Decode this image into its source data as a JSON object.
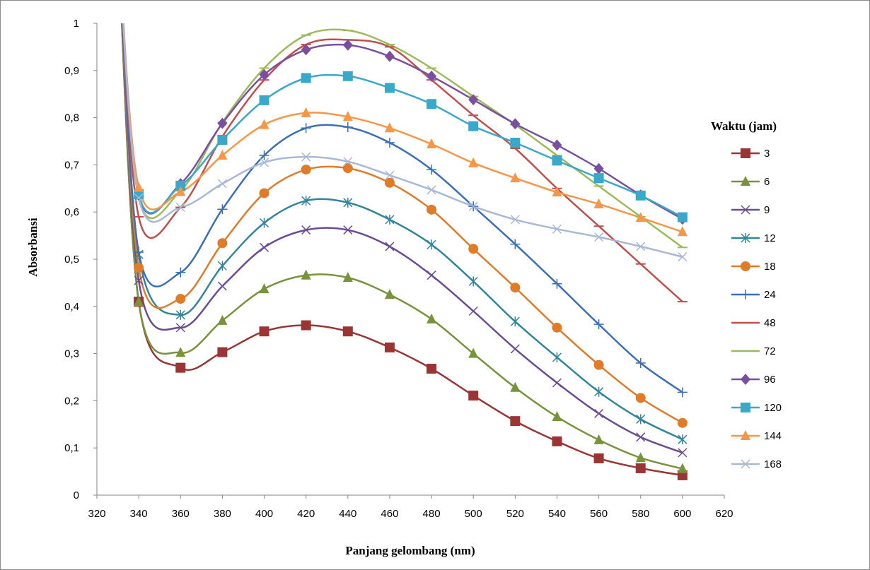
{
  "chart_data": {
    "type": "line",
    "title": "",
    "xlabel": "Panjang gelombang (nm)",
    "ylabel": "Absorbansi",
    "xlim": [
      320,
      620
    ],
    "ylim": [
      0,
      1
    ],
    "x_ticks": [
      320,
      340,
      360,
      380,
      400,
      420,
      440,
      460,
      480,
      500,
      520,
      540,
      560,
      580,
      600,
      620
    ],
    "y_ticks": [
      0,
      0.1,
      0.2,
      0.3,
      0.4,
      0.5,
      0.6,
      0.7,
      0.8,
      0.9,
      1
    ],
    "y_tick_labels": [
      "0",
      "0,1",
      "0,2",
      "0,3",
      "0,4",
      "0,5",
      "0,6",
      "0,7",
      "0,8",
      "0,9",
      "1"
    ],
    "grid": false,
    "smooth": true,
    "legend": {
      "title": "Waktu  (jam)",
      "position": "right"
    },
    "x": [
      330,
      340,
      360,
      380,
      400,
      420,
      440,
      460,
      480,
      500,
      520,
      540,
      560,
      580,
      600
    ],
    "series": [
      {
        "name": "3",
        "color": "#9b3535",
        "marker": "square",
        "values": [
          1.2,
          0.41,
          0.27,
          0.303,
          0.347,
          0.36,
          0.347,
          0.313,
          0.268,
          0.211,
          0.157,
          0.114,
          0.078,
          0.057,
          0.042
        ]
      },
      {
        "name": "6",
        "color": "#77933c",
        "marker": "triangle",
        "values": [
          1.2,
          0.41,
          0.302,
          0.37,
          0.437,
          0.466,
          0.461,
          0.425,
          0.373,
          0.3,
          0.228,
          0.166,
          0.117,
          0.079,
          0.056
        ]
      },
      {
        "name": "9",
        "color": "#6a4c93",
        "marker": "x",
        "values": [
          1.2,
          0.455,
          0.355,
          0.443,
          0.525,
          0.562,
          0.562,
          0.527,
          0.466,
          0.39,
          0.31,
          0.238,
          0.173,
          0.123,
          0.09
        ]
      },
      {
        "name": "12",
        "color": "#31859c",
        "marker": "star",
        "values": [
          1.2,
          0.51,
          0.382,
          0.486,
          0.577,
          0.624,
          0.62,
          0.584,
          0.531,
          0.453,
          0.368,
          0.292,
          0.219,
          0.161,
          0.118
        ]
      },
      {
        "name": "18",
        "color": "#e07b28",
        "marker": "circle",
        "values": [
          1.2,
          0.482,
          0.416,
          0.534,
          0.64,
          0.69,
          0.693,
          0.662,
          0.605,
          0.522,
          0.44,
          0.355,
          0.276,
          0.206,
          0.153
        ]
      },
      {
        "name": "24",
        "color": "#3b6fb6",
        "marker": "plus",
        "values": [
          1.2,
          0.515,
          0.472,
          0.606,
          0.72,
          0.778,
          0.78,
          0.747,
          0.69,
          0.612,
          0.532,
          0.448,
          0.362,
          0.28,
          0.218
        ]
      },
      {
        "name": "48",
        "color": "#c0504d",
        "marker": "dash",
        "values": [
          1.2,
          0.59,
          0.61,
          0.76,
          0.88,
          0.955,
          0.965,
          0.95,
          0.88,
          0.805,
          0.735,
          0.65,
          0.57,
          0.49,
          0.41
        ]
      },
      {
        "name": "72",
        "color": "#9bbb59",
        "marker": "dash",
        "values": [
          1.2,
          0.63,
          0.645,
          0.79,
          0.905,
          0.975,
          0.985,
          0.955,
          0.905,
          0.845,
          0.785,
          0.72,
          0.655,
          0.59,
          0.525
        ]
      },
      {
        "name": "96",
        "color": "#7b4fa0",
        "marker": "diamond",
        "values": [
          1.2,
          0.636,
          0.66,
          0.788,
          0.891,
          0.944,
          0.954,
          0.93,
          0.888,
          0.838,
          0.787,
          0.742,
          0.692,
          0.636,
          0.585
        ]
      },
      {
        "name": "120",
        "color": "#3aa8c8",
        "marker": "square",
        "values": [
          1.2,
          0.638,
          0.656,
          0.753,
          0.837,
          0.884,
          0.888,
          0.863,
          0.829,
          0.782,
          0.747,
          0.709,
          0.672,
          0.635,
          0.589
        ]
      },
      {
        "name": "144",
        "color": "#f79646",
        "marker": "triangle",
        "values": [
          1.2,
          0.652,
          0.643,
          0.72,
          0.785,
          0.81,
          0.802,
          0.778,
          0.744,
          0.704,
          0.672,
          0.642,
          0.617,
          0.588,
          0.558
        ]
      },
      {
        "name": "168",
        "color": "#a9b8d6",
        "marker": "x",
        "values": [
          1.2,
          0.63,
          0.61,
          0.66,
          0.705,
          0.717,
          0.707,
          0.678,
          0.647,
          0.612,
          0.584,
          0.564,
          0.547,
          0.527,
          0.505
        ]
      }
    ]
  }
}
